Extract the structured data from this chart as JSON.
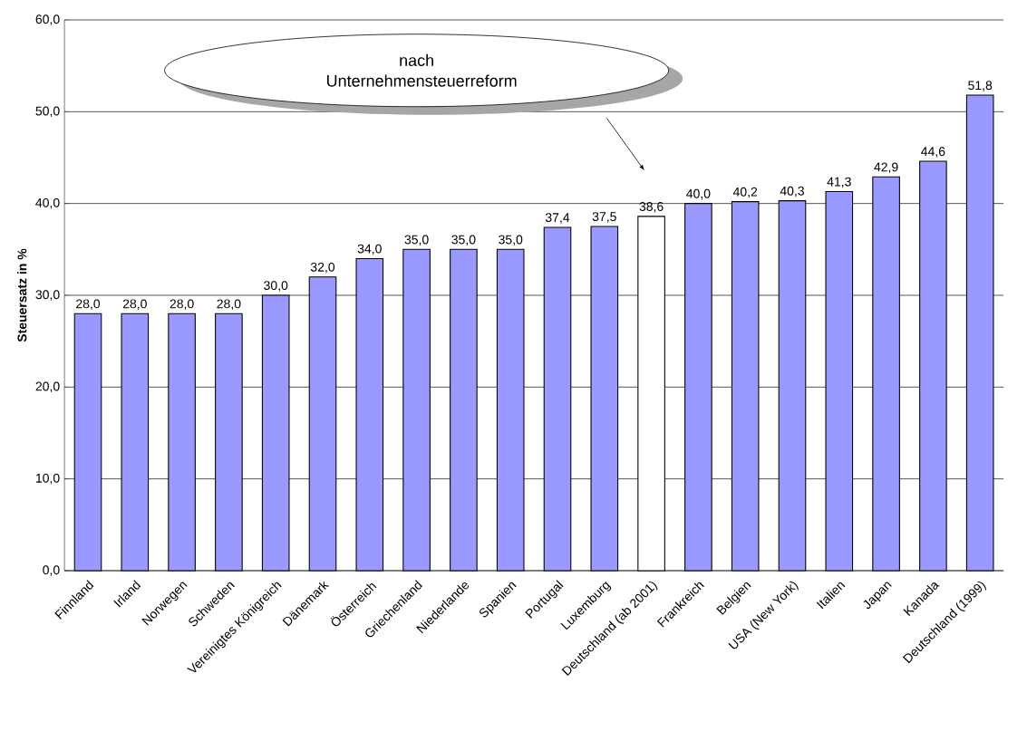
{
  "chart_data": {
    "type": "bar",
    "ylabel": "Steuersatz in %",
    "categories": [
      "Finnland",
      "Irland",
      "Norwegen",
      "Schweden",
      "Vereinigtes Königreich",
      "Dänemark",
      "Österreich",
      "Griechenland",
      "Niederlande",
      "Spanien",
      "Portugal",
      "Luxemburg",
      "Deutschland (ab 2001)",
      "Frankreich",
      "Belgien",
      "USA (New York)",
      "Italien",
      "Japan",
      "Kanada",
      "Deutschland (1999)"
    ],
    "values": [
      28.0,
      28.0,
      28.0,
      28.0,
      30.0,
      32.0,
      34.0,
      35.0,
      35.0,
      35.0,
      37.4,
      37.5,
      38.6,
      40.0,
      40.2,
      40.3,
      41.3,
      42.9,
      44.6,
      51.8
    ],
    "value_labels": [
      "28,0",
      "28,0",
      "28,0",
      "28,0",
      "30,0",
      "32,0",
      "34,0",
      "35,0",
      "35,0",
      "35,0",
      "37,4",
      "37,5",
      "38,6",
      "40,0",
      "40,2",
      "40,3",
      "41,3",
      "42,9",
      "44,6",
      "51,8"
    ],
    "colors": [
      "#9999ff",
      "#9999ff",
      "#9999ff",
      "#9999ff",
      "#9999ff",
      "#9999ff",
      "#9999ff",
      "#9999ff",
      "#9999ff",
      "#9999ff",
      "#9999ff",
      "#9999ff",
      "#ffffff",
      "#9999ff",
      "#9999ff",
      "#9999ff",
      "#9999ff",
      "#9999ff",
      "#9999ff",
      "#9999ff"
    ],
    "ylim": [
      0,
      60
    ],
    "yticks": [
      {
        "value": 0,
        "label": "0,0"
      },
      {
        "value": 10,
        "label": "10,0"
      },
      {
        "value": 20,
        "label": "20,0"
      },
      {
        "value": 30,
        "label": "30,0"
      },
      {
        "value": 40,
        "label": "40,0"
      },
      {
        "value": 50,
        "label": "50,0"
      },
      {
        "value": 60,
        "label": "60,0"
      }
    ],
    "grid": "y",
    "annotations": [
      "nach Unternehmensteuerreform"
    ]
  }
}
